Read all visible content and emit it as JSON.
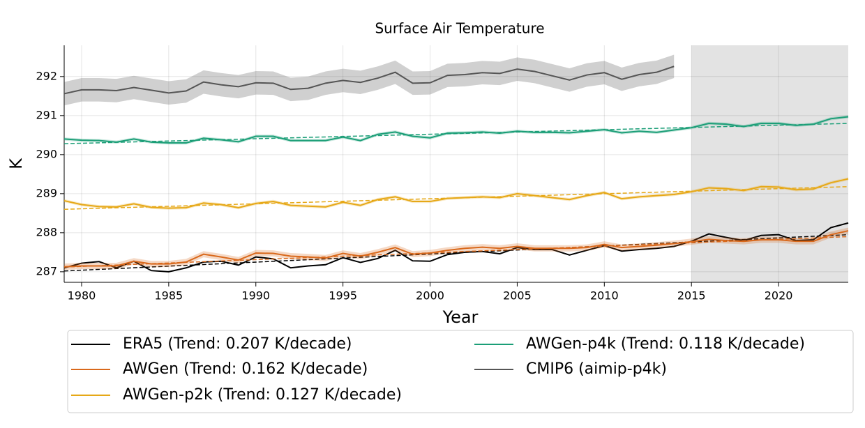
{
  "chart_data": {
    "type": "line",
    "title": "Surface Air Temperature",
    "xlabel": "Year",
    "ylabel": "K",
    "xlim": [
      1979,
      2024
    ],
    "ylim": [
      286.73,
      292.8
    ],
    "xticks": [
      1980,
      1985,
      1990,
      1995,
      2000,
      2005,
      2010,
      2015,
      2020
    ],
    "yticks": [
      287,
      288,
      289,
      290,
      291,
      292
    ],
    "grid": true,
    "shaded_span": [
      2015,
      2024
    ],
    "legend": "lower center",
    "x": [
      1979,
      1980,
      1981,
      1982,
      1983,
      1984,
      1985,
      1986,
      1987,
      1988,
      1989,
      1990,
      1991,
      1992,
      1993,
      1994,
      1995,
      1996,
      1997,
      1998,
      1999,
      2000,
      2001,
      2002,
      2003,
      2004,
      2005,
      2006,
      2007,
      2008,
      2009,
      2010,
      2011,
      2012,
      2013,
      2014,
      2015,
      2016,
      2017,
      2018,
      2019,
      2020,
      2021,
      2022,
      2023,
      2024
    ],
    "series": [
      {
        "name": "ERA5 (Trend: 0.207 K/decade)",
        "color": "#000000",
        "trend": [
          287.02,
          287.95
        ],
        "values": [
          287.1,
          287.22,
          287.26,
          287.1,
          287.27,
          287.03,
          287.0,
          287.1,
          287.25,
          287.27,
          287.17,
          287.38,
          287.33,
          287.1,
          287.15,
          287.18,
          287.36,
          287.24,
          287.34,
          287.55,
          287.28,
          287.27,
          287.44,
          287.5,
          287.52,
          287.46,
          287.62,
          287.57,
          287.57,
          287.43,
          287.55,
          287.67,
          287.53,
          287.57,
          287.6,
          287.65,
          287.78,
          287.97,
          287.88,
          287.8,
          287.93,
          287.95,
          287.8,
          287.82,
          288.13,
          288.25
        ]
      },
      {
        "name": "AWGen (Trend: 0.162 K/decade)",
        "color": "#d9691c",
        "trend": [
          287.12,
          287.9
        ],
        "spread": 0.08,
        "values": [
          287.13,
          287.15,
          287.15,
          287.15,
          287.27,
          287.2,
          287.2,
          287.25,
          287.45,
          287.38,
          287.3,
          287.48,
          287.47,
          287.4,
          287.38,
          287.35,
          287.47,
          287.4,
          287.5,
          287.62,
          287.45,
          287.48,
          287.55,
          287.6,
          287.63,
          287.6,
          287.65,
          287.6,
          287.6,
          287.6,
          287.62,
          287.7,
          287.62,
          287.65,
          287.68,
          287.72,
          287.77,
          287.83,
          287.8,
          287.78,
          287.82,
          287.82,
          287.78,
          287.78,
          287.95,
          288.05
        ]
      },
      {
        "name": "AWGen-p2k (Trend: 0.127 K/decade)",
        "color": "#e6a817",
        "trend": [
          288.6,
          289.18
        ],
        "spread": 0.04,
        "values": [
          288.82,
          288.72,
          288.67,
          288.66,
          288.74,
          288.65,
          288.63,
          288.64,
          288.76,
          288.72,
          288.64,
          288.75,
          288.8,
          288.7,
          288.68,
          288.66,
          288.78,
          288.7,
          288.85,
          288.92,
          288.8,
          288.8,
          288.88,
          288.9,
          288.92,
          288.9,
          289.0,
          288.95,
          288.9,
          288.85,
          288.95,
          289.03,
          288.87,
          288.92,
          288.95,
          288.98,
          289.05,
          289.15,
          289.13,
          289.08,
          289.18,
          289.17,
          289.1,
          289.12,
          289.28,
          289.38
        ]
      },
      {
        "name": "AWGen-p4k (Trend: 0.118 K/decade)",
        "color": "#1b9e77",
        "trend": [
          290.28,
          290.8
        ],
        "spread": 0.04,
        "values": [
          290.4,
          290.37,
          290.36,
          290.32,
          290.4,
          290.32,
          290.3,
          290.3,
          290.42,
          290.38,
          290.33,
          290.47,
          290.47,
          290.36,
          290.36,
          290.36,
          290.45,
          290.36,
          290.52,
          290.58,
          290.47,
          290.43,
          290.55,
          290.56,
          290.58,
          290.55,
          290.6,
          290.57,
          290.57,
          290.56,
          290.6,
          290.64,
          290.56,
          290.6,
          290.57,
          290.63,
          290.69,
          290.8,
          290.78,
          290.72,
          290.8,
          290.8,
          290.75,
          290.78,
          290.92,
          290.97
        ]
      },
      {
        "name": "CMIP6 (aimip-p4k)",
        "color": "#555555",
        "spread": 0.3,
        "values": [
          291.56,
          291.66,
          291.66,
          291.64,
          291.72,
          291.65,
          291.58,
          291.63,
          291.86,
          291.79,
          291.74,
          291.84,
          291.83,
          291.67,
          291.7,
          291.83,
          291.9,
          291.85,
          291.96,
          292.11,
          291.83,
          291.84,
          292.03,
          292.05,
          292.1,
          292.08,
          292.19,
          292.13,
          292.02,
          291.91,
          292.04,
          292.1,
          291.93,
          292.05,
          292.11,
          292.26,
          null,
          null,
          null,
          null,
          null,
          null,
          null,
          null,
          null,
          null
        ]
      }
    ]
  }
}
